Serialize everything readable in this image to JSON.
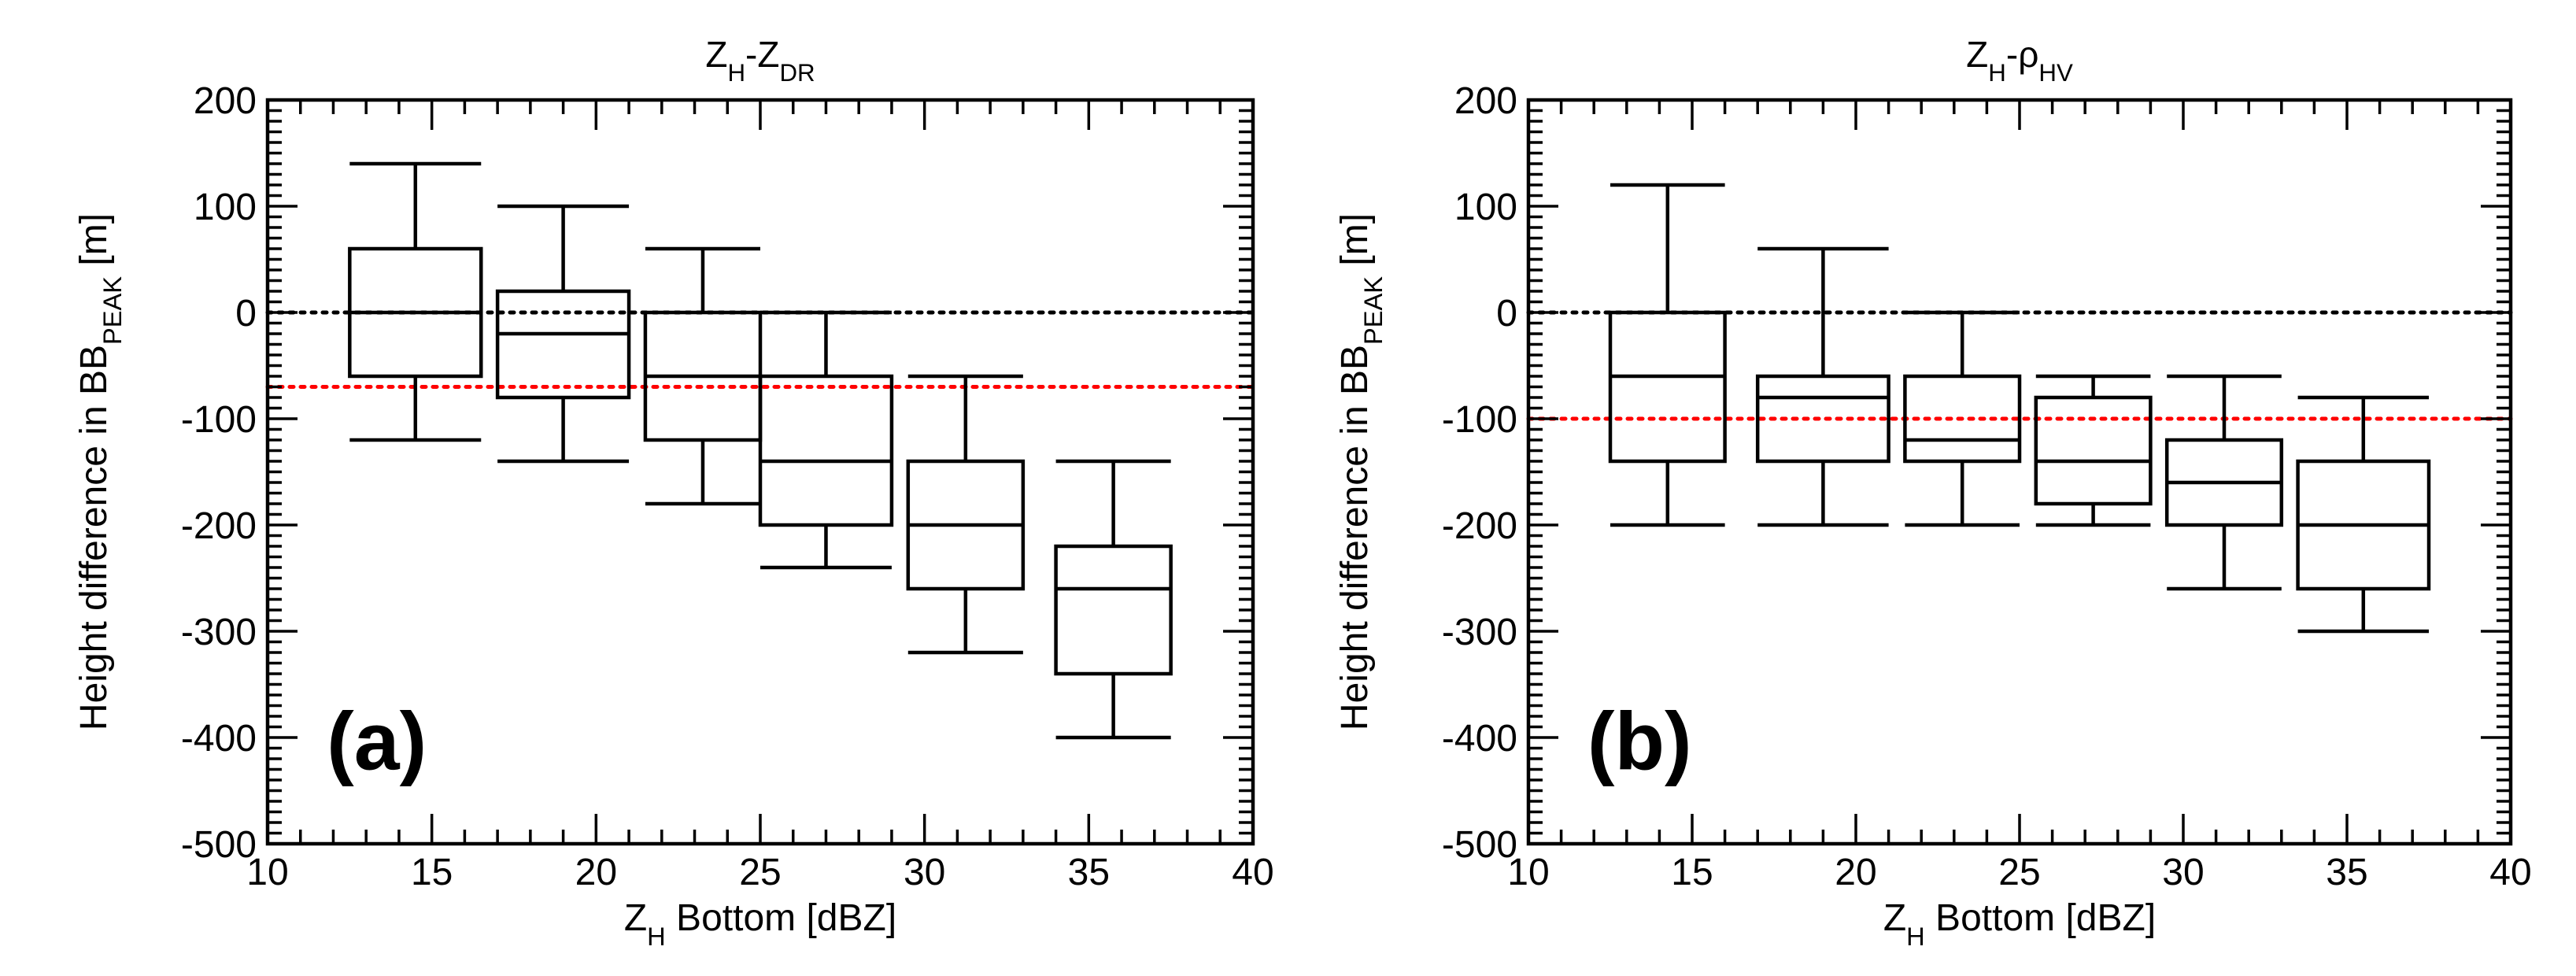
{
  "chart_data": [
    {
      "type": "box",
      "panel_label": "(a)",
      "title": {
        "main": "Z",
        "sub1": "H",
        "mid": "-Z",
        "sub2": "DR"
      },
      "xlabel": {
        "main": "Z",
        "sub": "H",
        "rest": " Bottom [dBZ]"
      },
      "ylabel": {
        "main": "Height difference in BB",
        "sub": "PEAK",
        "rest": " [m]"
      },
      "xlim": [
        10,
        40
      ],
      "ylim": [
        -500,
        200
      ],
      "xticks": [
        10,
        15,
        20,
        25,
        30,
        35,
        40
      ],
      "yticks": [
        -500,
        -400,
        -300,
        -200,
        -100,
        0,
        100,
        200
      ],
      "reference_lines": [
        {
          "y": 0,
          "color": "#000000",
          "style": "dotted"
        },
        {
          "y": -70,
          "color": "#ff0000",
          "style": "dotted"
        }
      ],
      "boxes": [
        {
          "x_from": 12.5,
          "x_to": 16.5,
          "whisker_low": -120,
          "q1": -60,
          "median": 0,
          "q3": 60,
          "whisker_high": 140
        },
        {
          "x_from": 17,
          "x_to": 21,
          "whisker_low": -140,
          "q1": -80,
          "median": -20,
          "q3": 20,
          "whisker_high": 100
        },
        {
          "x_from": 21.5,
          "x_to": 25,
          "whisker_low": -180,
          "q1": -120,
          "median": -60,
          "q3": 0,
          "whisker_high": 60
        },
        {
          "x_from": 25,
          "x_to": 29,
          "whisker_low": -240,
          "q1": -200,
          "median": -140,
          "q3": -60,
          "whisker_high": 0
        },
        {
          "x_from": 29.5,
          "x_to": 33,
          "whisker_low": -320,
          "q1": -260,
          "median": -200,
          "q3": -140,
          "whisker_high": -60
        },
        {
          "x_from": 34,
          "x_to": 37.5,
          "whisker_low": -400,
          "q1": -340,
          "median": -260,
          "q3": -220,
          "whisker_high": -140
        }
      ]
    },
    {
      "type": "box",
      "panel_label": "(b)",
      "title": {
        "main": "Z",
        "sub1": "H",
        "mid": "-ρ",
        "sub2": "HV"
      },
      "xlabel": {
        "main": "Z",
        "sub": "H",
        "rest": " Bottom [dBZ]"
      },
      "ylabel": {
        "main": "Height difference in BB",
        "sub": "PEAK",
        "rest": " [m]"
      },
      "xlim": [
        10,
        40
      ],
      "ylim": [
        -500,
        200
      ],
      "xticks": [
        10,
        15,
        20,
        25,
        30,
        35,
        40
      ],
      "yticks": [
        -500,
        -400,
        -300,
        -200,
        -100,
        0,
        100,
        200
      ],
      "reference_lines": [
        {
          "y": 0,
          "color": "#000000",
          "style": "dotted"
        },
        {
          "y": -100,
          "color": "#ff0000",
          "style": "dotted"
        }
      ],
      "boxes": [
        {
          "x_from": 12.5,
          "x_to": 16,
          "whisker_low": -200,
          "q1": -140,
          "median": -60,
          "q3": 0,
          "whisker_high": 120
        },
        {
          "x_from": 17,
          "x_to": 21,
          "whisker_low": -200,
          "q1": -140,
          "median": -80,
          "q3": -60,
          "whisker_high": 60
        },
        {
          "x_from": 21.5,
          "x_to": 25,
          "whisker_low": -200,
          "q1": -140,
          "median": -120,
          "q3": -60,
          "whisker_high": 0
        },
        {
          "x_from": 25.5,
          "x_to": 29,
          "whisker_low": -200,
          "q1": -180,
          "median": -140,
          "q3": -80,
          "whisker_high": -60
        },
        {
          "x_from": 29.5,
          "x_to": 33,
          "whisker_low": -260,
          "q1": -200,
          "median": -160,
          "q3": -120,
          "whisker_high": -60
        },
        {
          "x_from": 33.5,
          "x_to": 37.5,
          "whisker_low": -300,
          "q1": -260,
          "median": -200,
          "q3": -140,
          "whisker_high": -80
        }
      ]
    }
  ]
}
